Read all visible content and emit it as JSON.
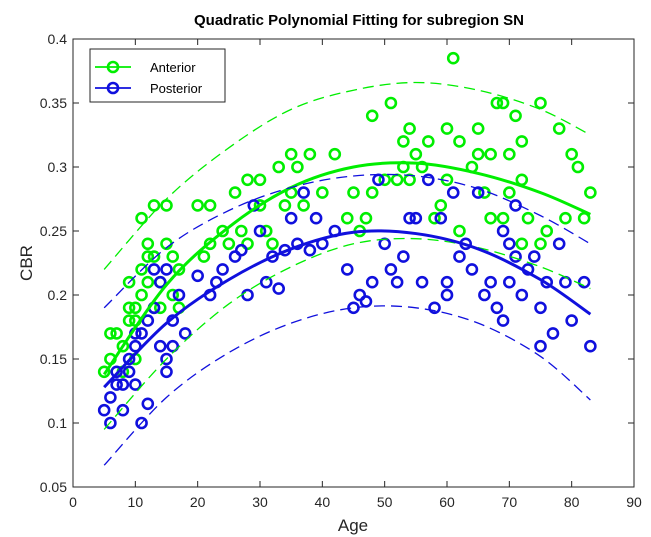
{
  "chart_data": {
    "type": "scatter",
    "title": "Quadratic Polynomial Fitting for subregion SN",
    "xlabel": "Age",
    "ylabel": "CBR",
    "xlim": [
      0,
      90
    ],
    "ylim": [
      0.05,
      0.4
    ],
    "xticks": [
      0,
      10,
      20,
      30,
      40,
      50,
      60,
      70,
      80,
      90
    ],
    "yticks": [
      0.05,
      0.1,
      0.15,
      0.2,
      0.25,
      0.3,
      0.35,
      0.4
    ],
    "legend_position": "top-left",
    "series": [
      {
        "name": "Anterior",
        "color": "#00ee00",
        "fit": {
          "x": [
            5,
            15,
            25,
            35,
            45,
            55,
            65,
            75,
            83
          ],
          "y": [
            0.138,
            0.208,
            0.253,
            0.284,
            0.3,
            0.303,
            0.295,
            0.28,
            0.263
          ]
        },
        "upper_bound": {
          "x": [
            5,
            15,
            25,
            35,
            45,
            55,
            65,
            75,
            83
          ],
          "y": [
            0.22,
            0.275,
            0.315,
            0.345,
            0.36,
            0.366,
            0.36,
            0.345,
            0.325
          ]
        },
        "lower_bound": {
          "x": [
            5,
            15,
            25,
            35,
            45,
            55,
            65,
            75,
            83
          ],
          "y": [
            0.095,
            0.15,
            0.193,
            0.222,
            0.24,
            0.244,
            0.237,
            0.222,
            0.205
          ]
        },
        "points": [
          [
            5,
            0.14
          ],
          [
            6,
            0.15
          ],
          [
            6,
            0.17
          ],
          [
            7,
            0.17
          ],
          [
            8,
            0.16
          ],
          [
            8,
            0.14
          ],
          [
            9,
            0.18
          ],
          [
            9,
            0.19
          ],
          [
            9,
            0.21
          ],
          [
            10,
            0.18
          ],
          [
            10,
            0.19
          ],
          [
            10,
            0.15
          ],
          [
            11,
            0.26
          ],
          [
            11,
            0.22
          ],
          [
            11,
            0.2
          ],
          [
            12,
            0.24
          ],
          [
            12,
            0.23
          ],
          [
            12,
            0.21
          ],
          [
            13,
            0.27
          ],
          [
            13,
            0.23
          ],
          [
            13,
            0.19
          ],
          [
            14,
            0.21
          ],
          [
            14,
            0.19
          ],
          [
            15,
            0.24
          ],
          [
            15,
            0.27
          ],
          [
            16,
            0.23
          ],
          [
            16,
            0.2
          ],
          [
            17,
            0.22
          ],
          [
            17,
            0.19
          ],
          [
            20,
            0.27
          ],
          [
            21,
            0.23
          ],
          [
            22,
            0.24
          ],
          [
            22,
            0.27
          ],
          [
            24,
            0.25
          ],
          [
            25,
            0.24
          ],
          [
            26,
            0.28
          ],
          [
            27,
            0.25
          ],
          [
            28,
            0.29
          ],
          [
            28,
            0.24
          ],
          [
            30,
            0.29
          ],
          [
            30,
            0.27
          ],
          [
            31,
            0.25
          ],
          [
            32,
            0.24
          ],
          [
            33,
            0.3
          ],
          [
            34,
            0.27
          ],
          [
            35,
            0.31
          ],
          [
            35,
            0.28
          ],
          [
            36,
            0.3
          ],
          [
            37,
            0.27
          ],
          [
            38,
            0.31
          ],
          [
            40,
            0.28
          ],
          [
            42,
            0.31
          ],
          [
            44,
            0.26
          ],
          [
            45,
            0.28
          ],
          [
            46,
            0.25
          ],
          [
            47,
            0.26
          ],
          [
            48,
            0.34
          ],
          [
            48,
            0.28
          ],
          [
            50,
            0.29
          ],
          [
            51,
            0.35
          ],
          [
            52,
            0.29
          ],
          [
            53,
            0.32
          ],
          [
            53,
            0.3
          ],
          [
            54,
            0.33
          ],
          [
            54,
            0.29
          ],
          [
            55,
            0.31
          ],
          [
            56,
            0.3
          ],
          [
            57,
            0.32
          ],
          [
            58,
            0.26
          ],
          [
            59,
            0.27
          ],
          [
            60,
            0.33
          ],
          [
            60,
            0.29
          ],
          [
            61,
            0.385
          ],
          [
            62,
            0.32
          ],
          [
            62,
            0.25
          ],
          [
            64,
            0.3
          ],
          [
            65,
            0.31
          ],
          [
            65,
            0.33
          ],
          [
            66,
            0.28
          ],
          [
            67,
            0.31
          ],
          [
            67,
            0.26
          ],
          [
            68,
            0.35
          ],
          [
            69,
            0.35
          ],
          [
            69,
            0.26
          ],
          [
            70,
            0.31
          ],
          [
            70,
            0.28
          ],
          [
            71,
            0.34
          ],
          [
            72,
            0.32
          ],
          [
            72,
            0.29
          ],
          [
            72,
            0.24
          ],
          [
            73,
            0.26
          ],
          [
            75,
            0.35
          ],
          [
            75,
            0.24
          ],
          [
            76,
            0.25
          ],
          [
            78,
            0.33
          ],
          [
            79,
            0.26
          ],
          [
            80,
            0.31
          ],
          [
            81,
            0.3
          ],
          [
            82,
            0.26
          ],
          [
            83,
            0.28
          ]
        ]
      },
      {
        "name": "Posterior",
        "color": "#1010dd",
        "fit": {
          "x": [
            5,
            15,
            25,
            35,
            45,
            55,
            65,
            75,
            83
          ],
          "y": [
            0.128,
            0.178,
            0.212,
            0.236,
            0.249,
            0.248,
            0.236,
            0.212,
            0.185
          ]
        },
        "upper_bound": {
          "x": [
            5,
            15,
            25,
            35,
            45,
            55,
            65,
            75,
            83
          ],
          "y": [
            0.19,
            0.237,
            0.266,
            0.284,
            0.293,
            0.293,
            0.283,
            0.262,
            0.24
          ]
        },
        "lower_bound": {
          "x": [
            5,
            15,
            25,
            35,
            45,
            55,
            65,
            75,
            83
          ],
          "y": [
            0.067,
            0.12,
            0.155,
            0.178,
            0.19,
            0.19,
            0.178,
            0.152,
            0.118
          ]
        },
        "points": [
          [
            5,
            0.11
          ],
          [
            6,
            0.12
          ],
          [
            6,
            0.1
          ],
          [
            7,
            0.13
          ],
          [
            7,
            0.14
          ],
          [
            8,
            0.11
          ],
          [
            8,
            0.13
          ],
          [
            9,
            0.15
          ],
          [
            9,
            0.14
          ],
          [
            10,
            0.13
          ],
          [
            10,
            0.16
          ],
          [
            10,
            0.17
          ],
          [
            11,
            0.1
          ],
          [
            11,
            0.17
          ],
          [
            12,
            0.18
          ],
          [
            12,
            0.115
          ],
          [
            13,
            0.22
          ],
          [
            13,
            0.19
          ],
          [
            14,
            0.21
          ],
          [
            14,
            0.16
          ],
          [
            15,
            0.22
          ],
          [
            15,
            0.14
          ],
          [
            15,
            0.15
          ],
          [
            16,
            0.18
          ],
          [
            16,
            0.16
          ],
          [
            17,
            0.2
          ],
          [
            18,
            0.17
          ],
          [
            20,
            0.215
          ],
          [
            22,
            0.2
          ],
          [
            23,
            0.21
          ],
          [
            24,
            0.22
          ],
          [
            26,
            0.23
          ],
          [
            27,
            0.235
          ],
          [
            28,
            0.2
          ],
          [
            29,
            0.27
          ],
          [
            30,
            0.25
          ],
          [
            31,
            0.21
          ],
          [
            32,
            0.23
          ],
          [
            33,
            0.205
          ],
          [
            34,
            0.235
          ],
          [
            35,
            0.26
          ],
          [
            36,
            0.24
          ],
          [
            37,
            0.28
          ],
          [
            38,
            0.235
          ],
          [
            39,
            0.26
          ],
          [
            40,
            0.24
          ],
          [
            42,
            0.25
          ],
          [
            44,
            0.22
          ],
          [
            45,
            0.19
          ],
          [
            46,
            0.2
          ],
          [
            47,
            0.195
          ],
          [
            48,
            0.21
          ],
          [
            49,
            0.29
          ],
          [
            50,
            0.24
          ],
          [
            51,
            0.22
          ],
          [
            52,
            0.21
          ],
          [
            53,
            0.23
          ],
          [
            54,
            0.26
          ],
          [
            55,
            0.26
          ],
          [
            56,
            0.21
          ],
          [
            57,
            0.29
          ],
          [
            58,
            0.19
          ],
          [
            59,
            0.26
          ],
          [
            60,
            0.2
          ],
          [
            60,
            0.21
          ],
          [
            61,
            0.28
          ],
          [
            62,
            0.23
          ],
          [
            63,
            0.24
          ],
          [
            64,
            0.22
          ],
          [
            65,
            0.28
          ],
          [
            66,
            0.2
          ],
          [
            67,
            0.21
          ],
          [
            68,
            0.19
          ],
          [
            69,
            0.25
          ],
          [
            69,
            0.18
          ],
          [
            70,
            0.24
          ],
          [
            70,
            0.21
          ],
          [
            71,
            0.27
          ],
          [
            71,
            0.23
          ],
          [
            72,
            0.2
          ],
          [
            73,
            0.22
          ],
          [
            74,
            0.23
          ],
          [
            75,
            0.16
          ],
          [
            75,
            0.19
          ],
          [
            76,
            0.21
          ],
          [
            77,
            0.17
          ],
          [
            78,
            0.24
          ],
          [
            79,
            0.21
          ],
          [
            80,
            0.18
          ],
          [
            82,
            0.21
          ],
          [
            83,
            0.16
          ]
        ]
      }
    ]
  }
}
